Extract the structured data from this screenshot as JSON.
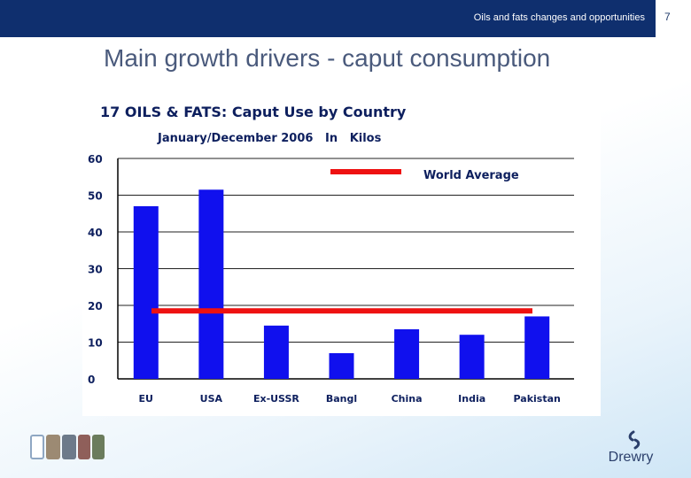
{
  "header": {
    "title": "Oils and fats changes and opportunities",
    "page_number": "7"
  },
  "slide": {
    "title": "Main growth drivers - caput consumption"
  },
  "logo": {
    "name": "Drewry"
  },
  "colors": {
    "header": "#0f2f6e",
    "bar": "#1010ee",
    "average_line": "#ee1111"
  },
  "chart_data": {
    "type": "bar",
    "title": "17 OILS & FATS:  Caput Use by Country",
    "subtitle": "January/December 2006   In   Kilos",
    "categories": [
      "EU",
      "USA",
      "Ex-USSR",
      "Bangl",
      "China",
      "India",
      "Pakistan"
    ],
    "values": [
      47,
      51.5,
      14.5,
      7,
      13.5,
      12,
      17
    ],
    "reference_line": {
      "name": "World Average",
      "value": 18.5
    },
    "yticks": [
      "60",
      "50",
      "40",
      "30",
      "20",
      "10",
      "0"
    ],
    "ylim": [
      0,
      60
    ],
    "grid": true,
    "legend": "top-right"
  }
}
